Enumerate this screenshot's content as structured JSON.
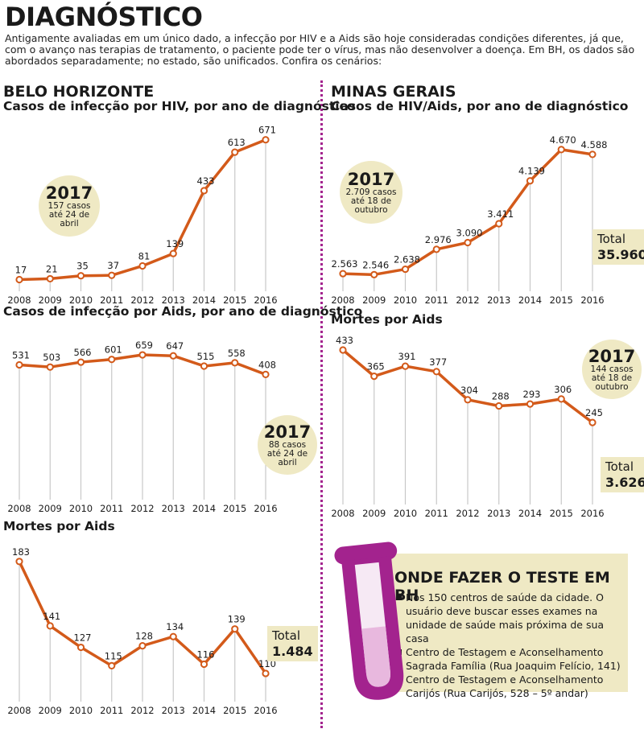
{
  "header": {
    "title": "DIAGNÓSTICO",
    "intro": "Antigamente avaliadas em um único dado, a infecção por HIV e a Aids são hoje consideradas condições diferentes, já que, com o avanço nas terapias de tratamento, o paciente pode ter o vírus, mas não desenvolver a doença. Em BH, os dados são abordados separadamente; no estado, são unificados. Confira os cenários:"
  },
  "sections": {
    "left": "BELO HORIZONTE",
    "right": "MINAS GERAIS"
  },
  "colors": {
    "line": "#d35a1a",
    "grid": "#c8c8c8",
    "bubble": "#efe9c4",
    "divider": "#a3238e",
    "tube": "#a3238e"
  },
  "annotations": {
    "bh_hiv": {
      "year": "2017",
      "note": [
        "157 casos",
        "até 24 de",
        "abril"
      ]
    },
    "bh_aids": {
      "year": "2017",
      "note": [
        "88 casos",
        "até 24 de",
        "abril"
      ]
    },
    "bh_deaths_total": {
      "label": "Total",
      "value": "1.484"
    },
    "mg_hiv": {
      "year": "2017",
      "note": [
        "2.709 casos",
        "até 18 de",
        "outubro"
      ]
    },
    "mg_hiv_total": {
      "label": "Total",
      "value": "35.960"
    },
    "mg_deaths": {
      "year": "2017",
      "note": [
        "144 casos",
        "até 18 de",
        "outubro"
      ]
    },
    "mg_deaths_total": {
      "label": "Total",
      "value": "3.626"
    }
  },
  "test_box": {
    "title": "ONDE FAZER O TESTE EM BH",
    "items": [
      "Nos 150 centros de saúde da cidade. O usuário deve buscar esses exames na unidade de saúde mais próxima de sua casa",
      "Centro de Testagem e Aconselhamento Sagrada Família (Rua Joaquim Felício, 141)",
      "Centro de Testagem e Aconselhamento Carijós (Rua Carijós, 528 – 5º andar)"
    ]
  },
  "chart_data": [
    {
      "id": "bh_hiv",
      "type": "line",
      "title": "Casos de infecção por HIV, por ano de diagnóstico",
      "categories": [
        "2008",
        "2009",
        "2010",
        "2011",
        "2012",
        "2013",
        "2014",
        "2015",
        "2016"
      ],
      "values": [
        17,
        21,
        35,
        37,
        81,
        139,
        433,
        613,
        671
      ],
      "labels": [
        "17",
        "21",
        "35",
        "37",
        "81",
        "139",
        "433",
        "613",
        "671"
      ],
      "ylim": [
        0,
        700
      ]
    },
    {
      "id": "bh_aids",
      "type": "line",
      "title": "Casos de infecção por Aids, por ano de diagnóstico",
      "categories": [
        "2008",
        "2009",
        "2010",
        "2011",
        "2012",
        "2013",
        "2014",
        "2015",
        "2016"
      ],
      "values": [
        531,
        503,
        566,
        601,
        659,
        647,
        515,
        558,
        408
      ],
      "labels": [
        "531",
        "503",
        "566",
        "601",
        "659",
        "647",
        "515",
        "558",
        "408"
      ],
      "ylim": [
        0,
        680
      ]
    },
    {
      "id": "bh_deaths",
      "type": "line",
      "title": "Mortes por Aids",
      "categories": [
        "2008",
        "2009",
        "2010",
        "2011",
        "2012",
        "2013",
        "2014",
        "2015",
        "2016"
      ],
      "values": [
        183,
        141,
        127,
        115,
        128,
        134,
        116,
        139,
        110
      ],
      "labels": [
        "183",
        "141",
        "127",
        "115",
        "128",
        "134",
        "116",
        "139",
        "110"
      ],
      "ylim": [
        100,
        185
      ]
    },
    {
      "id": "mg_hiv",
      "type": "line",
      "title": "Casos de HIV/Aids, por ano de diagnóstico",
      "categories": [
        "2008",
        "2009",
        "2010",
        "2011",
        "2012",
        "2013",
        "2014",
        "2015",
        "2016"
      ],
      "values": [
        2563,
        2546,
        2638,
        2976,
        3090,
        3411,
        4139,
        4670,
        4588
      ],
      "labels": [
        "2.563",
        "2.546",
        "2.638",
        "2.976",
        "3.090",
        "3.411",
        "4.139",
        "4.670",
        "4.588"
      ],
      "ylim": [
        2400,
        4750
      ]
    },
    {
      "id": "mg_deaths",
      "type": "line",
      "title": "Mortes por Aids",
      "categories": [
        "2008",
        "2009",
        "2010",
        "2011",
        "2012",
        "2013",
        "2014",
        "2015",
        "2016"
      ],
      "values": [
        433,
        365,
        391,
        377,
        304,
        288,
        293,
        306,
        245
      ],
      "labels": [
        "433",
        "365",
        "391",
        "377",
        "304",
        "288",
        "293",
        "306",
        "245"
      ],
      "ylim": [
        120,
        433
      ]
    }
  ]
}
